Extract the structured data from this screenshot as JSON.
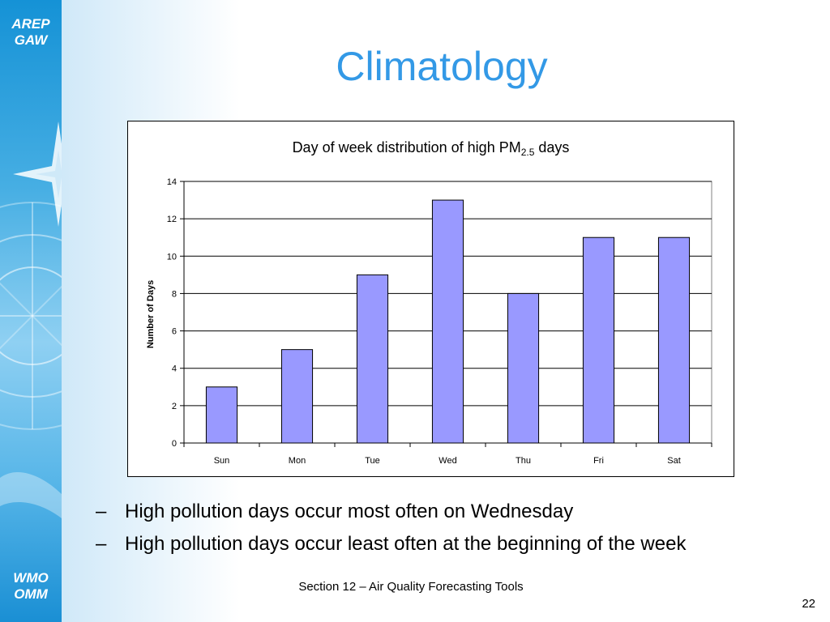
{
  "sidebar": {
    "logo_top_line1": "AREP",
    "logo_top_line2": "GAW",
    "logo_bottom_line1": "WMO",
    "logo_bottom_line2": "OMM"
  },
  "slide": {
    "title": "Climatology"
  },
  "chart_data": {
    "type": "bar",
    "title_main": "Day of week distribution of high PM",
    "title_sub": "2.5",
    "title_suffix": " days",
    "ylabel": "Number of Days",
    "xlabel": "",
    "categories": [
      "Sun",
      "Mon",
      "Tue",
      "Wed",
      "Thu",
      "Fri",
      "Sat"
    ],
    "values": [
      3,
      5,
      9,
      13,
      8,
      11,
      11
    ],
    "ylim": [
      0,
      14
    ],
    "yticks": [
      0,
      2,
      4,
      6,
      8,
      10,
      12,
      14
    ],
    "grid": true,
    "legend": "none",
    "bar_color": "#9999ff",
    "bar_edge_color": "#000000"
  },
  "bullets": [
    "High pollution days occur most often on Wednesday",
    "High pollution days occur least often at the beginning of the week"
  ],
  "bullet_marker": "–",
  "footer": {
    "text": "Section 12 – Air Quality Forecasting Tools",
    "page_number": "22"
  },
  "colors": {
    "title": "#3399e6",
    "sidebar": "#1592d6"
  }
}
